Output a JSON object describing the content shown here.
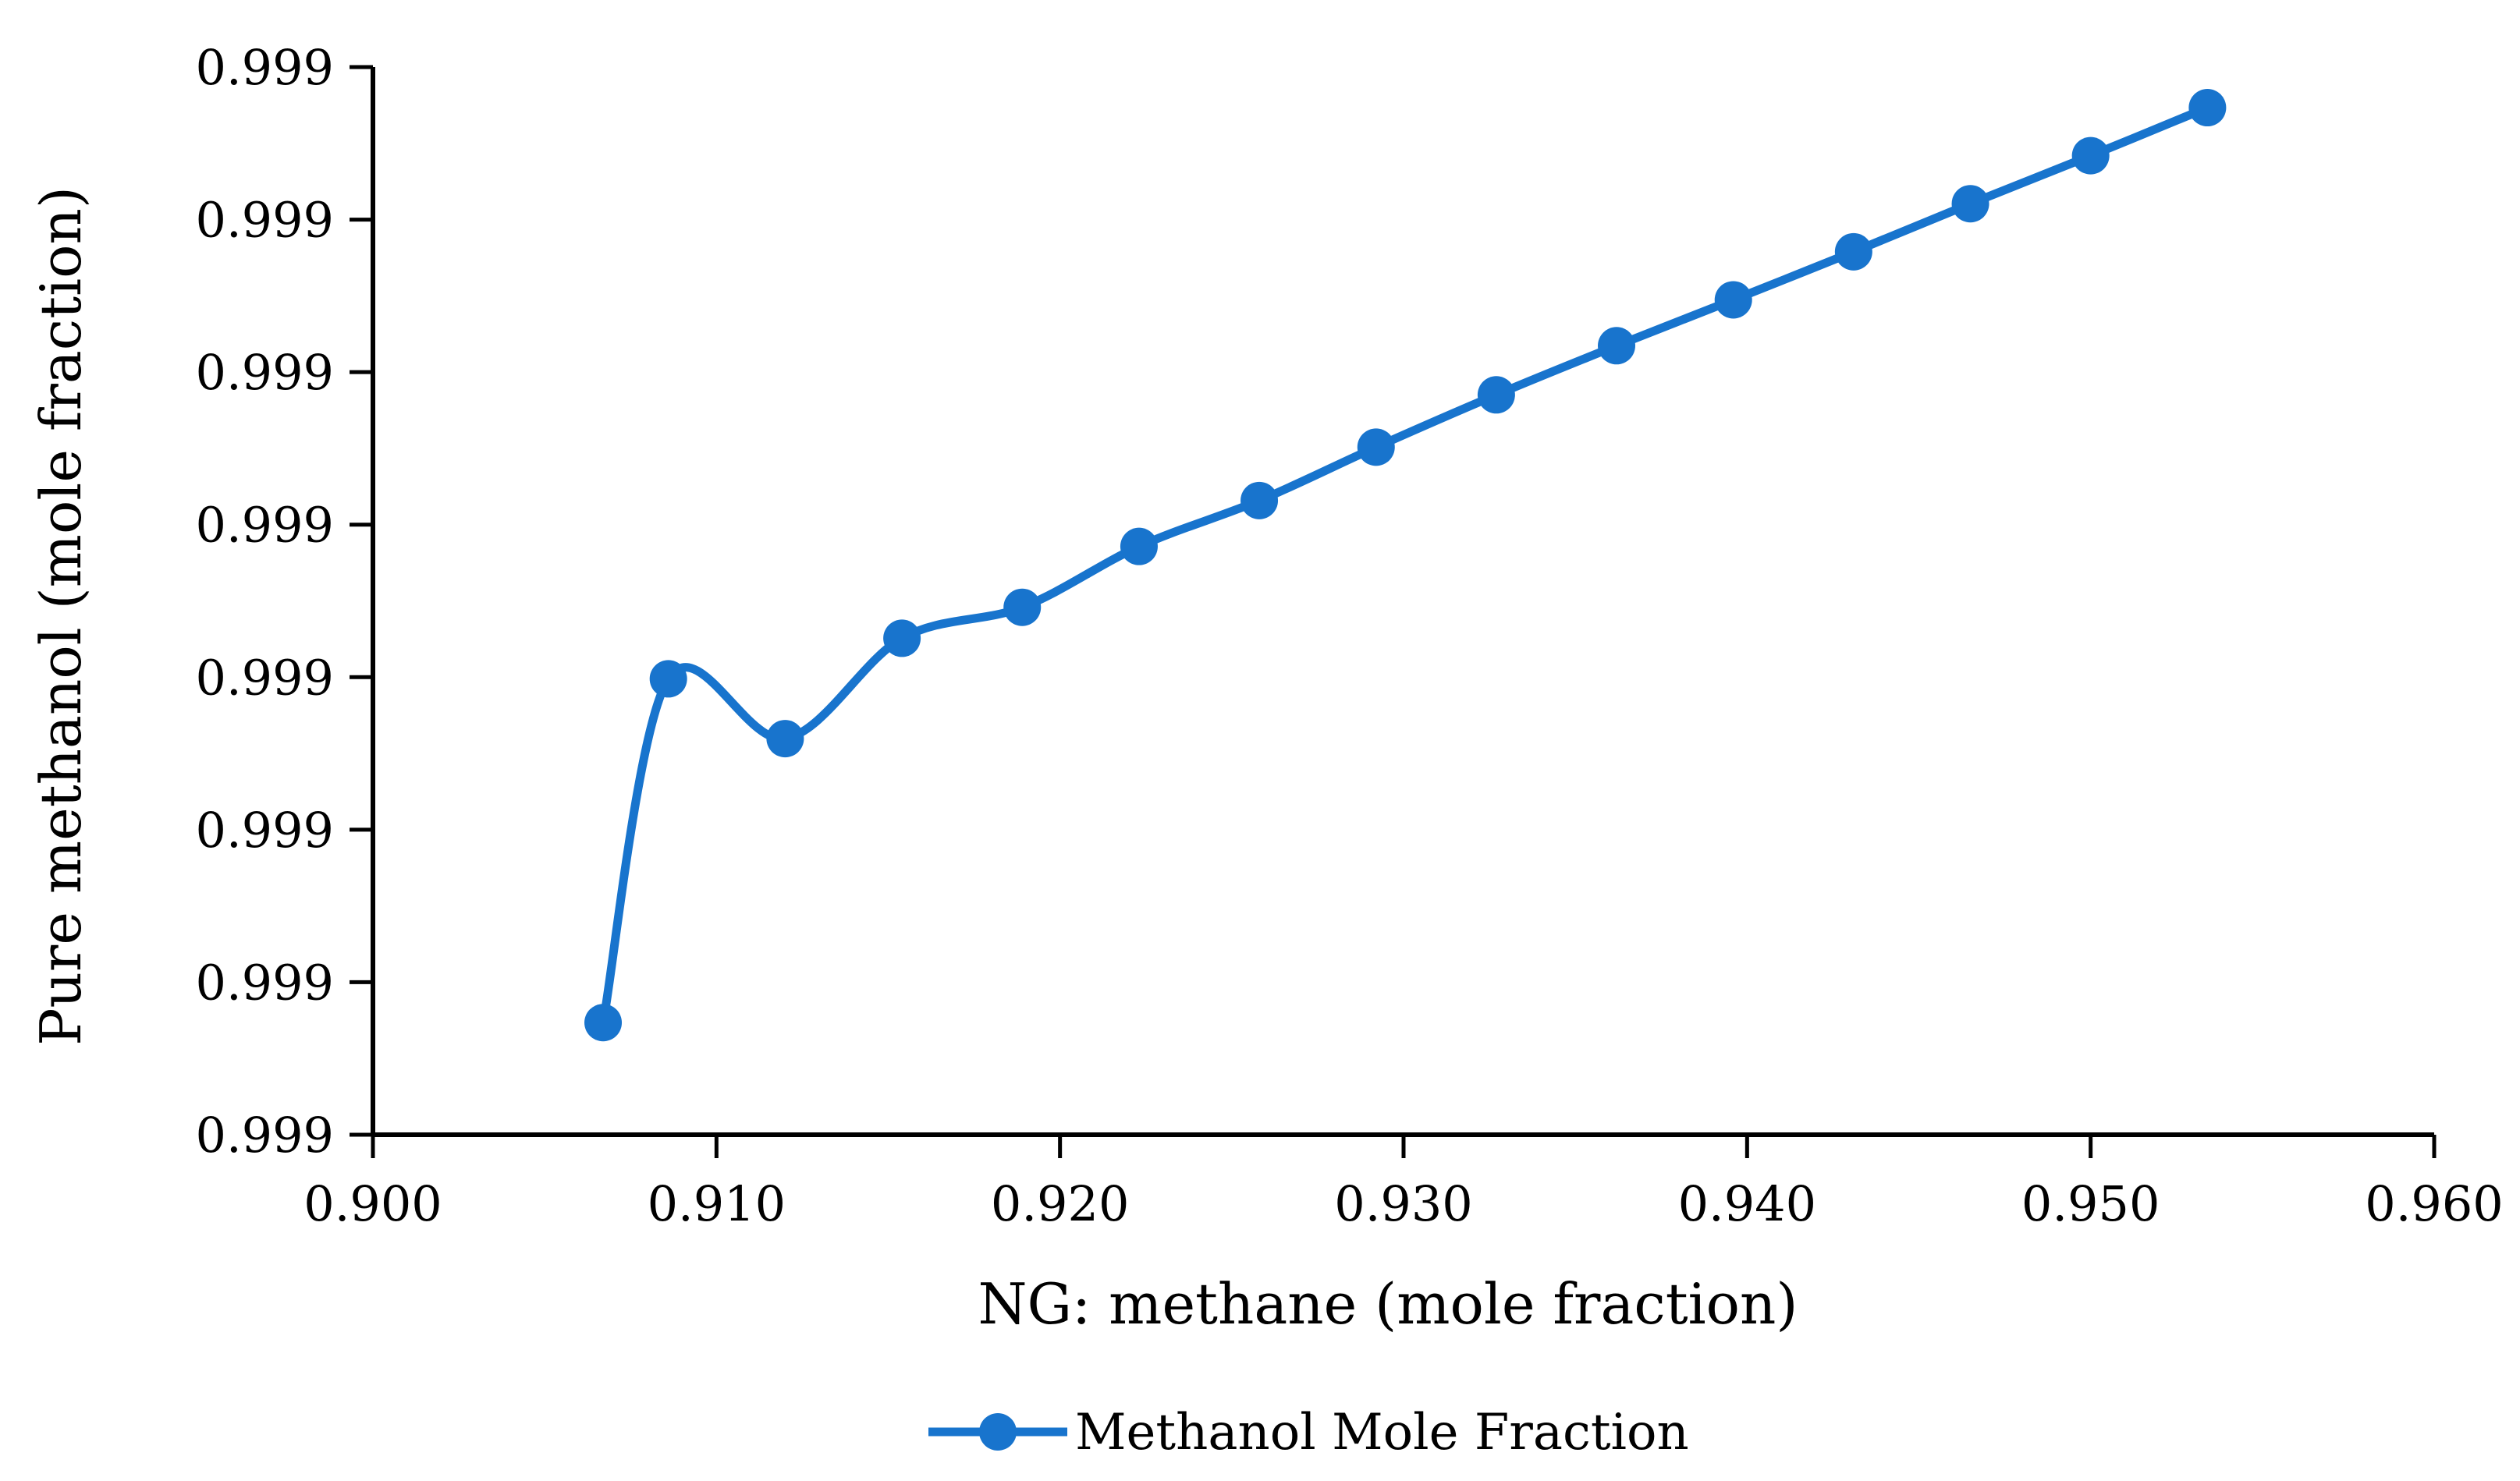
{
  "chart_data": {
    "type": "line",
    "title": "",
    "xlabel": "NG: methane (mole fraction)",
    "ylabel": "Pure methanol (mole fraction)",
    "xlim": [
      0.9,
      0.96
    ],
    "x_ticks": [
      "0.900",
      "0.910",
      "0.920",
      "0.930",
      "0.940",
      "0.950",
      "0.960"
    ],
    "y_ticks": [
      "0.999",
      "0.999",
      "0.999",
      "0.999",
      "0.999",
      "0.999",
      "0.999",
      "0.999"
    ],
    "y_tick_count": 8,
    "grid": false,
    "smooth": true,
    "legend_position": "bottom-center",
    "colors": {
      "series": "#1874CD"
    },
    "series": [
      {
        "name": "Methanol Mole Fraction",
        "x": [
          0.9067,
          0.9086,
          0.912,
          0.9154,
          0.9189,
          0.9223,
          0.9258,
          0.9292,
          0.9327,
          0.9362,
          0.9396,
          0.9431,
          0.9465,
          0.95,
          0.9534
        ],
        "y_relative": [
          0.105,
          0.427,
          0.371,
          0.465,
          0.494,
          0.551,
          0.594,
          0.644,
          0.693,
          0.739,
          0.782,
          0.827,
          0.872,
          0.917,
          0.962
        ]
      }
    ]
  }
}
